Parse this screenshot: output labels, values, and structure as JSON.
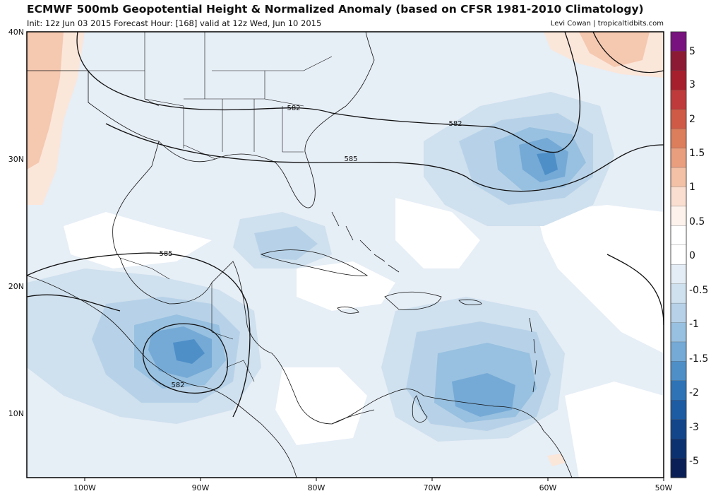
{
  "header": {
    "title": "ECMWF 500mb Geopotential Height & Normalized Anomaly (based on CFSR 1981-2010 Climatology)",
    "subtitle": "Init: 12z Jun 03 2015   Forecast Hour: [168]   valid at 12z Wed, Jun 10 2015",
    "credit": "Levi Cowan | tropicaltidbits.com"
  },
  "map": {
    "lon_range": [
      -105,
      -50
    ],
    "lat_range": [
      5,
      40
    ],
    "lat_ticks": [
      {
        "value": 40,
        "label": "40N"
      },
      {
        "value": 30,
        "label": "30N"
      },
      {
        "value": 20,
        "label": "20N"
      },
      {
        "value": 10,
        "label": "10N"
      }
    ],
    "lon_ticks": [
      {
        "value": -100,
        "label": "100W"
      },
      {
        "value": -90,
        "label": "90W"
      },
      {
        "value": -80,
        "label": "80W"
      },
      {
        "value": -70,
        "label": "70W"
      },
      {
        "value": -60,
        "label": "60W"
      },
      {
        "value": -50,
        "label": "50W"
      }
    ],
    "contour_labels": [
      {
        "text": "582",
        "lon": -83.9,
        "lat": 32.0
      },
      {
        "text": "582",
        "lon": -66.7,
        "lat": 31.7
      },
      {
        "text": "585",
        "lon": -77.1,
        "lat": 29.9
      },
      {
        "text": "585",
        "lon": -93.9,
        "lat": 19.7
      },
      {
        "text": "582",
        "lon": -91.9,
        "lat": 12.2
      }
    ]
  },
  "colorbar": {
    "labels": [
      "5",
      "3",
      "2",
      "1.5",
      "1",
      "0.5",
      "0",
      "-0.5",
      "-1",
      "-1.5",
      "-2",
      "-3",
      "-5"
    ],
    "colors": [
      "#78127f",
      "#8c1a34",
      "#a61f2d",
      "#bf3a3a",
      "#cf5a45",
      "#dc7d5c",
      "#e99e7e",
      "#f2c1a6",
      "#fadfd0",
      "#fdf2ec",
      "#ffffff",
      "#ffffff",
      "#e4edf5",
      "#cfe0ee",
      "#b7d2e8",
      "#98c0e0",
      "#75aad6",
      "#4e8fc8",
      "#2e73b6",
      "#1d5ba3",
      "#13458b",
      "#0c3170",
      "#0a1f55"
    ]
  }
}
